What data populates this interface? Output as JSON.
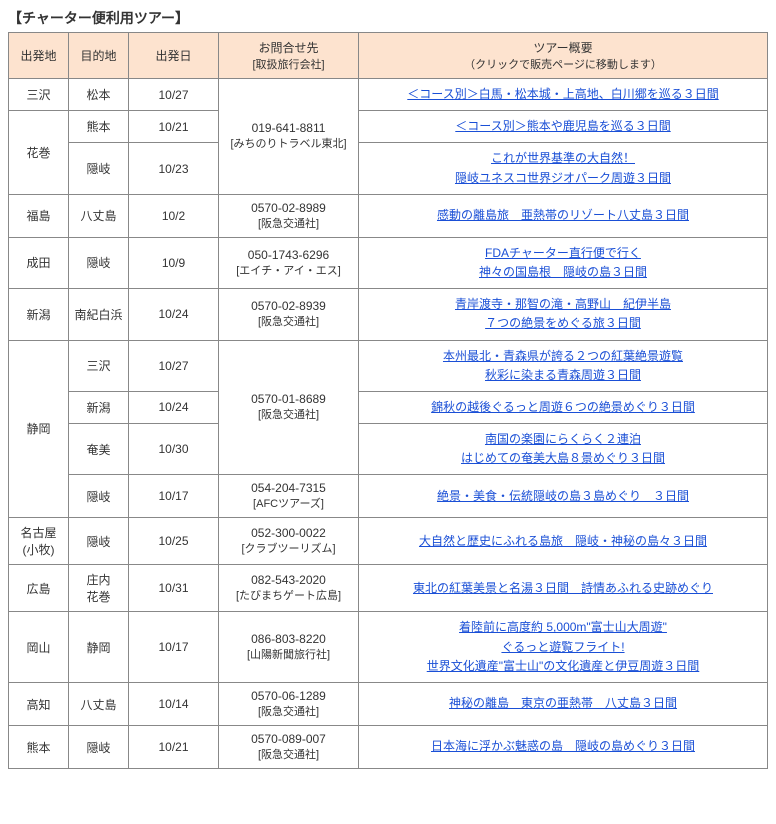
{
  "pageTitle": "【チャーター便利用ツアー】",
  "headers": {
    "dep": "出発地",
    "dest": "目的地",
    "date": "出発日",
    "contact": "お問合せ先",
    "contactSub": "[取扱旅行会社]",
    "tour": "ツアー概要",
    "tourSub": "（クリックで販売ページに移動します）"
  },
  "rows": [
    {
      "dep": "三沢",
      "depRowspan": 1,
      "dest": "松本",
      "date": "10/27",
      "contact": "019-641-8811",
      "contactSub": "[みちのりトラベル東北]",
      "contactRowspan": 3,
      "tour": [
        "＜コース別＞白馬・松本城・上高地、白川郷を巡る３日間"
      ]
    },
    {
      "dep": "花巻",
      "depRowspan": 2,
      "dest": "熊本",
      "date": "10/21",
      "tour": [
        "＜コース別＞熊本や鹿児島を巡る３日間"
      ]
    },
    {
      "dest": "隠岐",
      "date": "10/23",
      "tour": [
        "これが世界基準の大自然！",
        "隠岐ユネスコ世界ジオパーク周遊３日間"
      ]
    },
    {
      "dep": "福島",
      "depRowspan": 1,
      "dest": "八丈島",
      "date": "10/2",
      "contact": "0570-02-8989",
      "contactSub": "[阪急交通社]",
      "contactRowspan": 1,
      "tour": [
        "感動の離島旅　亜熱帯のリゾート八丈島３日間"
      ]
    },
    {
      "dep": "成田",
      "depRowspan": 1,
      "dest": "隠岐",
      "date": "10/9",
      "contact": "050-1743-6296",
      "contactSub": "[エイチ・アイ・エス]",
      "contactRowspan": 1,
      "tour": [
        "FDAチャーター直行便で行く",
        "神々の国島根　隠岐の島３日間"
      ]
    },
    {
      "dep": "新潟",
      "depRowspan": 1,
      "dest": "南紀白浜",
      "date": "10/24",
      "contact": "0570-02-8939",
      "contactSub": "[阪急交通社]",
      "contactRowspan": 1,
      "tour": [
        "青岸渡寺・那智の滝・高野山　紀伊半島",
        "７つの絶景をめぐる旅３日間"
      ]
    },
    {
      "dep": "静岡",
      "depRowspan": 4,
      "dest": "三沢",
      "date": "10/27",
      "contact": "0570-01-8689",
      "contactSub": "[阪急交通社]",
      "contactRowspan": 3,
      "tour": [
        "本州最北・青森県が誇る２つの紅葉絶景遊覧",
        "秋彩に染まる青森周遊３日間"
      ]
    },
    {
      "dest": "新潟",
      "date": "10/24",
      "tour": [
        "錦秋の越後ぐるっと周遊６つの絶景めぐり３日間"
      ]
    },
    {
      "dest": "奄美",
      "date": "10/30",
      "tour": [
        "南国の楽園にらくらく２連泊",
        "はじめての奄美大島８景めぐり３日間"
      ]
    },
    {
      "dest": "隠岐",
      "date": "10/17",
      "contact": "054-204-7315",
      "contactSub": "[AFCツアーズ]",
      "contactRowspan": 1,
      "tour": [
        "絶景・美食・伝統隠岐の島３島めぐり　３日間"
      ]
    },
    {
      "dep": "名古屋\n(小牧)",
      "depRowspan": 1,
      "dest": "隠岐",
      "date": "10/25",
      "contact": "052-300-0022",
      "contactSub": "[クラブツーリズム]",
      "contactRowspan": 1,
      "tour": [
        "大自然と歴史にふれる島旅　隠岐・神秘の島々３日間"
      ]
    },
    {
      "dep": "広島",
      "depRowspan": 1,
      "dest": "庄内\n花巻",
      "date": "10/31",
      "contact": "082-543-2020",
      "contactSub": "[たびまちゲート広島]",
      "contactRowspan": 1,
      "tour": [
        "東北の紅葉美景と名湯３日間　詩情あふれる史跡めぐり"
      ]
    },
    {
      "dep": "岡山",
      "depRowspan": 1,
      "dest": "静岡",
      "date": "10/17",
      "contact": "086-803-8220",
      "contactSub": "[山陽新聞旅行社]",
      "contactRowspan": 1,
      "tour": [
        "着陸前に高度約 5,000m\"富士山大周遊\"",
        "ぐるっと遊覧フライト!",
        "世界文化遺産\"富士山\"の文化遺産と伊豆周遊３日間"
      ]
    },
    {
      "dep": "高知",
      "depRowspan": 1,
      "dest": "八丈島",
      "date": "10/14",
      "contact": "0570-06-1289",
      "contactSub": "[阪急交通社]",
      "contactRowspan": 1,
      "tour": [
        "神秘の離島　東京の亜熱帯　八丈島３日間"
      ]
    },
    {
      "dep": "熊本",
      "depRowspan": 1,
      "dest": "隠岐",
      "date": "10/21",
      "contact": "0570-089-007",
      "contactSub": "[阪急交通社]",
      "contactRowspan": 1,
      "tour": [
        "日本海に浮かぶ魅惑の島　隠岐の島めぐり３日間"
      ]
    }
  ]
}
